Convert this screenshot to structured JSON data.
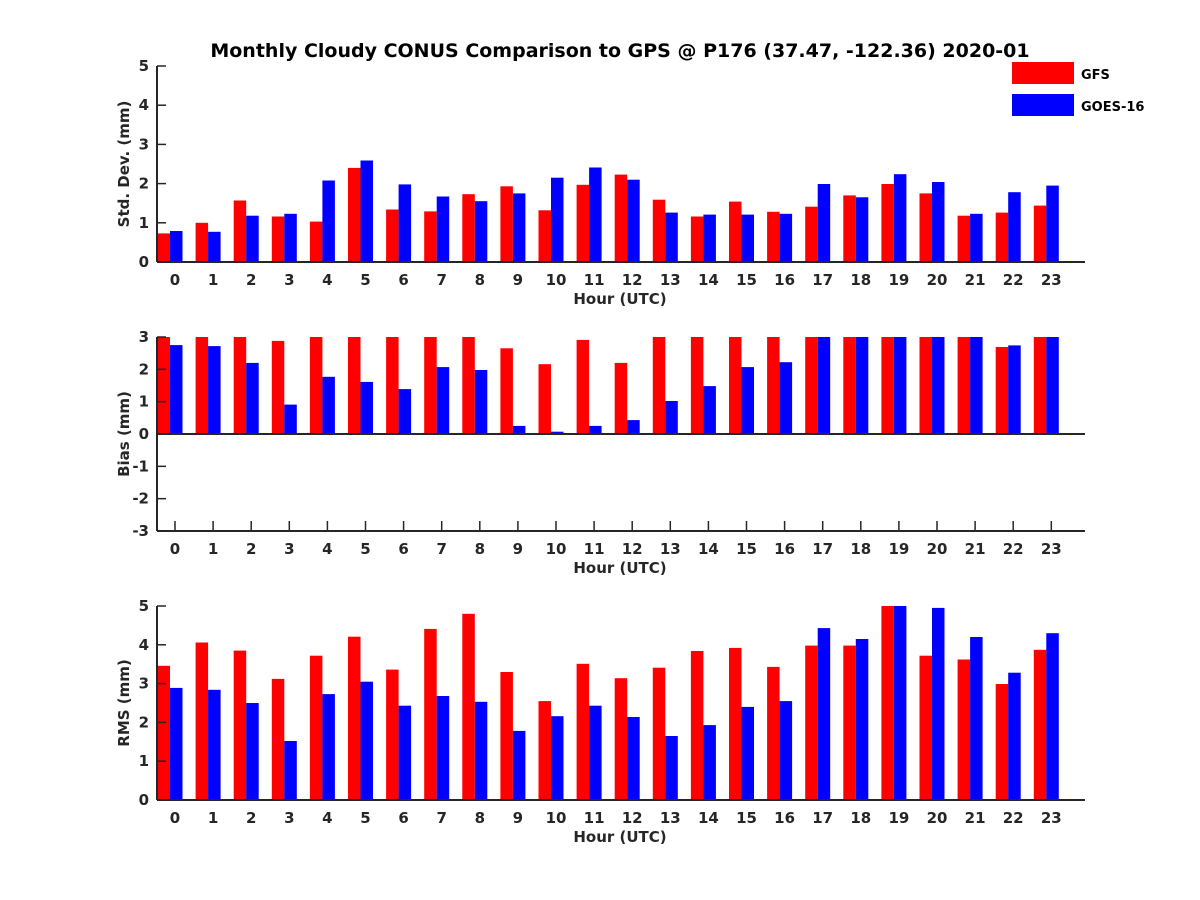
{
  "chart_data": {
    "type": "bar",
    "title": "Monthly Cloudy CONUS Comparison to GPS @ P176 (37.47, -122.36) 2020-01",
    "legend": {
      "placement": "top-right",
      "entries": [
        {
          "name": "GFS",
          "color": "#ff0000"
        },
        {
          "name": "GOES-16",
          "color": "#0000ff"
        }
      ]
    },
    "categories": [
      "0",
      "1",
      "2",
      "3",
      "4",
      "5",
      "6",
      "7",
      "8",
      "9",
      "10",
      "11",
      "12",
      "13",
      "14",
      "15",
      "16",
      "17",
      "18",
      "19",
      "20",
      "21",
      "22",
      "23"
    ],
    "panels": [
      {
        "id": "stddev",
        "ylabel": "Std. Dev. (mm)",
        "xlabel": "Hour (UTC)",
        "ylim": [
          0,
          5
        ],
        "yticks": [
          "0",
          "1",
          "2",
          "3",
          "4",
          "5"
        ],
        "show_top_xticks": false,
        "series": [
          {
            "name": "GFS",
            "values": [
              0.73,
              1.0,
              1.57,
              1.16,
              1.03,
              2.4,
              1.34,
              1.29,
              1.73,
              1.93,
              1.32,
              1.97,
              2.23,
              1.59,
              1.16,
              1.54,
              1.28,
              1.41,
              1.7,
              1.99,
              1.75,
              1.18,
              1.26,
              1.44
            ]
          },
          {
            "name": "GOES-16",
            "values": [
              0.79,
              0.77,
              1.18,
              1.23,
              2.08,
              2.59,
              1.98,
              1.67,
              1.55,
              1.75,
              2.15,
              2.41,
              2.1,
              1.26,
              1.21,
              1.21,
              1.23,
              1.99,
              1.65,
              2.24,
              2.04,
              1.23,
              1.78,
              1.95
            ]
          }
        ]
      },
      {
        "id": "bias",
        "ylabel": "Bias (mm)",
        "xlabel": "Hour (UTC)",
        "ylim": [
          -3,
          3
        ],
        "yticks": [
          "-3",
          "-2",
          "-1",
          "0",
          "1",
          "2",
          "3"
        ],
        "show_top_xticks": true,
        "series": [
          {
            "name": "GFS",
            "values": [
              3.0,
              3.0,
              3.0,
              2.88,
              3.0,
              3.0,
              3.0,
              3.0,
              3.0,
              2.65,
              2.16,
              2.91,
              2.2,
              3.0,
              3.0,
              3.0,
              3.0,
              3.0,
              3.0,
              3.0,
              3.0,
              3.0,
              2.69,
              3.0
            ]
          },
          {
            "name": "GOES-16",
            "values": [
              2.75,
              2.72,
              2.2,
              0.91,
              1.77,
              1.61,
              1.39,
              2.07,
              1.98,
              0.25,
              0.07,
              0.25,
              0.43,
              1.02,
              1.48,
              2.07,
              2.22,
              3.0,
              3.0,
              3.0,
              3.0,
              3.0,
              2.74,
              3.0
            ]
          }
        ]
      },
      {
        "id": "rms",
        "ylabel": "RMS (mm)",
        "xlabel": "Hour (UTC)",
        "ylim": [
          0,
          5
        ],
        "yticks": [
          "0",
          "1",
          "2",
          "3",
          "4",
          "5"
        ],
        "show_top_xticks": false,
        "series": [
          {
            "name": "GFS",
            "values": [
              3.46,
              4.06,
              3.85,
              3.12,
              3.72,
              4.21,
              3.36,
              4.41,
              4.8,
              3.3,
              2.55,
              3.51,
              3.14,
              3.41,
              3.84,
              3.92,
              3.43,
              3.98,
              3.98,
              5.0,
              3.72,
              3.62,
              2.99,
              3.87
            ]
          },
          {
            "name": "GOES-16",
            "values": [
              2.89,
              2.84,
              2.5,
              1.52,
              2.73,
              3.05,
              2.43,
              2.68,
              2.53,
              1.78,
              2.16,
              2.43,
              2.14,
              1.65,
              1.93,
              2.4,
              2.55,
              4.43,
              4.15,
              5.0,
              4.95,
              4.2,
              3.28,
              4.3
            ]
          }
        ]
      }
    ]
  }
}
